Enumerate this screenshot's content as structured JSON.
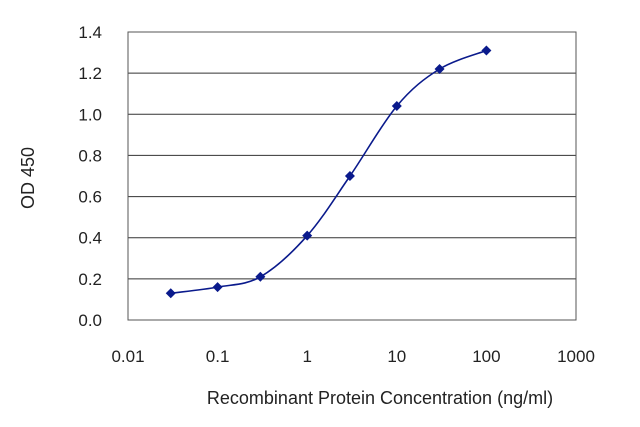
{
  "chart_data": {
    "type": "line",
    "title": "",
    "xlabel": "Recombinant Protein Concentration (ng/ml)",
    "ylabel": "OD 450",
    "x_scale": "log",
    "xlim": [
      0.01,
      1000
    ],
    "ylim": [
      0,
      1.4
    ],
    "x_ticks": [
      "0.01",
      "0.1",
      "1",
      "10",
      "100",
      "1000"
    ],
    "y_ticks": [
      "0.0",
      "0.2",
      "0.4",
      "0.6",
      "0.8",
      "1.0",
      "1.2",
      "1.4"
    ],
    "grid": "horizontal",
    "legend": "none",
    "colors": {
      "series": "#0a1a8c",
      "grid": "#333333",
      "frame": "#555555"
    },
    "series": [
      {
        "x": [
          0.03,
          0.1,
          0.3,
          1,
          3,
          10,
          30,
          100
        ],
        "y": [
          0.13,
          0.16,
          0.21,
          0.41,
          0.7,
          1.04,
          1.22,
          1.31
        ]
      }
    ]
  }
}
